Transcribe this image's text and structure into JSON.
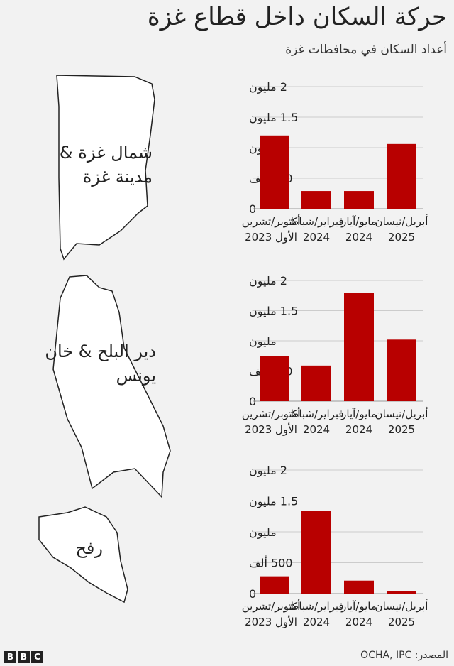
{
  "title": "حركة السكان داخل قطاع غزة",
  "subtitle": "أعداد السكان في محافظات غزة",
  "source": "المصدر: OCHA, IPC",
  "logo": "BBC",
  "colors": {
    "bar": "#b80000",
    "map_fill": "#ffffff",
    "grid": "#cccccc"
  },
  "regions": [
    {
      "label_line1": "شمال غزة &",
      "label_line2": "مدينة غزة"
    },
    {
      "label_line1": "دير البلح & خان",
      "label_line2": "يونس"
    },
    {
      "label_line1": "رفح",
      "label_line2": ""
    }
  ],
  "chart_data": [
    {
      "type": "bar",
      "region": "شمال غزة & مدينة غزة",
      "categories": [
        "أكتوبر/تشرين الأول 2023",
        "فبراير/شباط 2024",
        "مايو/آيار 2024",
        "أبريل/نيسان 2025"
      ],
      "values": [
        1200000,
        290000,
        290000,
        1060000
      ],
      "ylim": [
        0,
        2000000
      ],
      "yticks": [
        0,
        500000,
        1000000,
        1500000,
        2000000
      ],
      "ytick_labels": [
        "0",
        "500 ألف",
        "مليون",
        "1.5 مليون",
        "2 مليون"
      ],
      "grid": true
    },
    {
      "type": "bar",
      "region": "دير البلح & خان يونس",
      "categories": [
        "أكتوبر/تشرين الأول 2023",
        "فبراير/شباط 2024",
        "مايو/آيار 2024",
        "أبريل/نيسان 2025"
      ],
      "values": [
        750000,
        590000,
        1800000,
        1020000
      ],
      "ylim": [
        0,
        2000000
      ],
      "yticks": [
        0,
        500000,
        1000000,
        1500000,
        2000000
      ],
      "ytick_labels": [
        "0",
        "500 ألف",
        "مليون",
        "1.5 مليون",
        "2 مليون"
      ],
      "grid": true
    },
    {
      "type": "bar",
      "region": "رفح",
      "categories": [
        "أكتوبر/تشرين الأول 2023",
        "فبراير/شباط 2024",
        "مايو/آيار 2024",
        "أبريل/نيسان 2025"
      ],
      "values": [
        280000,
        1340000,
        210000,
        35000
      ],
      "ylim": [
        0,
        2000000
      ],
      "yticks": [
        0,
        500000,
        1000000,
        1500000,
        2000000
      ],
      "ytick_labels": [
        "0",
        "500 ألف",
        "مليون",
        "1.5 مليون",
        "2 مليون"
      ],
      "grid": true
    }
  ],
  "x_labels": [
    {
      "line1": "أكتوبر/تشرين",
      "line2": "الأول 2023"
    },
    {
      "line1": "فبراير/شباط",
      "line2": "2024"
    },
    {
      "line1": "مايو/آيار",
      "line2": "2024"
    },
    {
      "line1": "أبريل/نيسان",
      "line2": "2025"
    }
  ]
}
